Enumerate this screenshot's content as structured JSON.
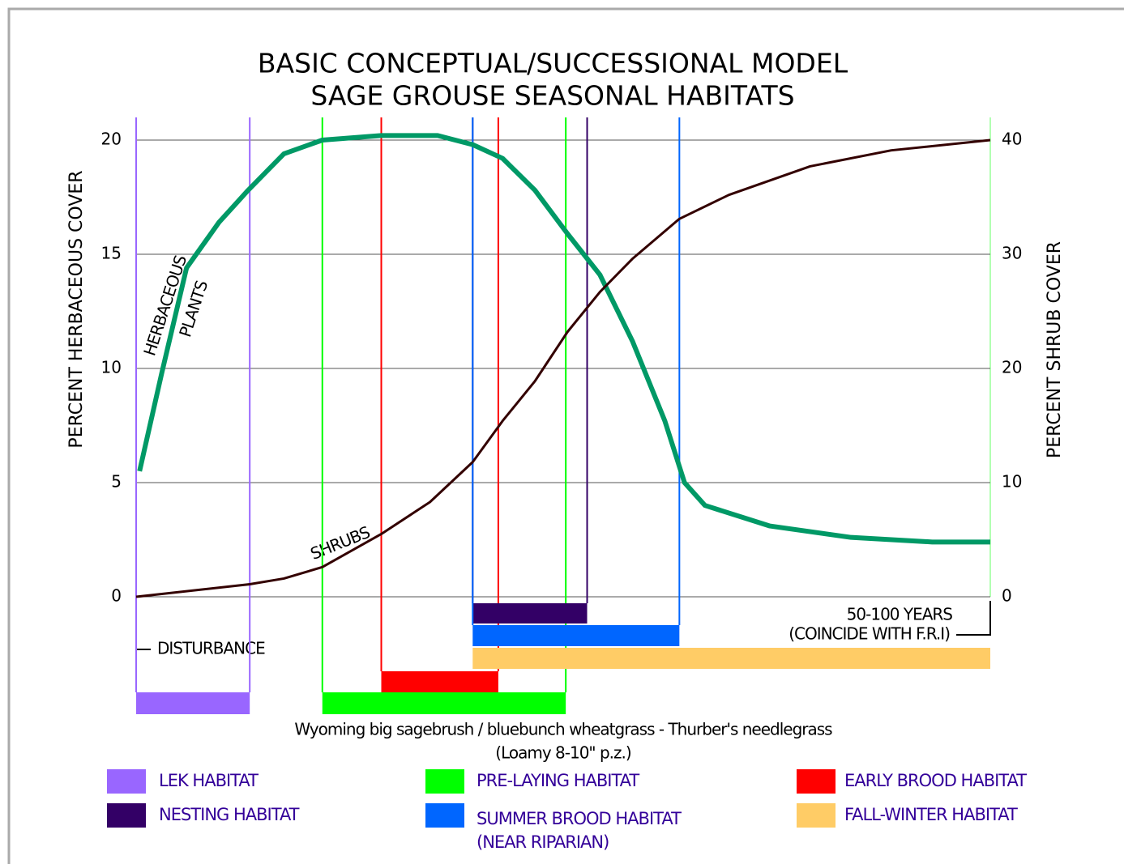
{
  "chart_data": {
    "type": "line",
    "title": [
      "BASIC CONCEPTUAL/SUCCESSIONAL MODEL",
      "SAGE GROUSE SEASONAL HABITATS"
    ],
    "ylabel": "PERCENT HERBACEOUS COVER",
    "y2label": "PERCENT SHRUB COVER",
    "subtitle": [
      "Wyoming big sagebrush / bluebunch wheatgrass - Thurber's needlegrass",
      "(Loamy 8-10\" p.z.)"
    ],
    "annotations": {
      "herbaceous": [
        "HERBACEOUS",
        "PLANTS"
      ],
      "shrubs": "SHRUBS",
      "start": "DISTURBANCE",
      "end": [
        "50-100 YEARS",
        "(COINCIDE WITH F.R.I)"
      ]
    },
    "xlim": [
      0,
      100
    ],
    "ylim": [
      0,
      20
    ],
    "yticks": [
      0,
      5,
      10,
      15,
      20
    ],
    "y2lim": [
      0,
      40
    ],
    "y2ticks": [
      0,
      10,
      20,
      30,
      40
    ],
    "grid": true,
    "series": [
      {
        "name": "HERBACEOUS PLANTS",
        "color": "#009966",
        "x": [
          0.4,
          3,
          5.9,
          9.7,
          13.1,
          17.3,
          21.8,
          28.7,
          35.3,
          39.4,
          42.9,
          46.7,
          50.5,
          54.3,
          58.1,
          61.9,
          64.2,
          66.6,
          74.2,
          83.7,
          93.2,
          100
        ],
        "values": [
          5.5,
          9.8,
          14.4,
          16.4,
          17.8,
          19.4,
          20,
          20.2,
          20.2,
          19.8,
          19.2,
          17.8,
          15.9,
          14.1,
          11.2,
          7.7,
          5,
          4,
          3.1,
          2.6,
          2.4,
          2.4
        ]
      },
      {
        "name": "SHRUBS",
        "color": "#330000",
        "axis": "y2",
        "x": [
          0,
          13.3,
          17.3,
          21.8,
          28.7,
          34.4,
          39.4,
          42.9,
          46.7,
          50.5,
          54.3,
          58.1,
          63.6,
          69.4,
          78.9,
          88.4,
          100
        ],
        "values": [
          0,
          1.1,
          1.6,
          2.6,
          5.5,
          8.3,
          11.8,
          15.4,
          18.9,
          23.2,
          26.7,
          29.6,
          33.1,
          35.2,
          37.7,
          39.1,
          40
        ]
      }
    ],
    "habitats": [
      {
        "name": "LEK HABITAT",
        "color": "#9966ff",
        "start": 0,
        "end": 13.3
      },
      {
        "name": "PRE-LAYING HABITAT",
        "color": "#00ff00",
        "start": 21.8,
        "end": 50.3
      },
      {
        "name": "EARLY BROOD HABITAT",
        "color": "#ff0000",
        "start": 28.7,
        "end": 42.4
      },
      {
        "name": "NESTING HABITAT",
        "color": "#330066",
        "start": 39.4,
        "end": 52.8
      },
      {
        "name": "SUMMER BROOD HABITAT",
        "note": "(NEAR RIPARIAN)",
        "color": "#0066ff",
        "start": 39.4,
        "end": 63.6
      },
      {
        "name": "FALL-WINTER HABITAT",
        "color": "#ffcc66",
        "start": 39.4,
        "end": 100
      }
    ]
  }
}
